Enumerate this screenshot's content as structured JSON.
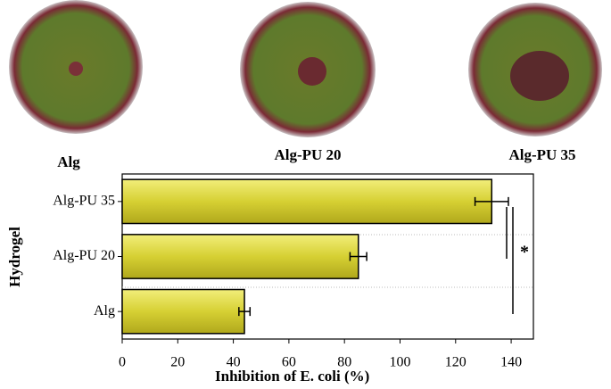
{
  "photos": [
    {
      "label": "Alg"
    },
    {
      "label": "Alg-PU 20"
    },
    {
      "label": "Alg-PU 35"
    }
  ],
  "chart_data": {
    "type": "bar",
    "orientation": "horizontal",
    "x_label": "Inhibition of E. coli (%)",
    "y_label": "Hydrogel",
    "categories": [
      "Alg-PU 35",
      "Alg-PU 20",
      "Alg"
    ],
    "values": [
      133,
      85,
      44
    ],
    "errors": [
      6,
      3,
      2
    ],
    "color": "#d6d033",
    "xlim": [
      0,
      148
    ],
    "xticks": [
      0,
      20,
      40,
      60,
      80,
      100,
      120,
      140
    ],
    "annotations": [
      "*"
    ]
  }
}
